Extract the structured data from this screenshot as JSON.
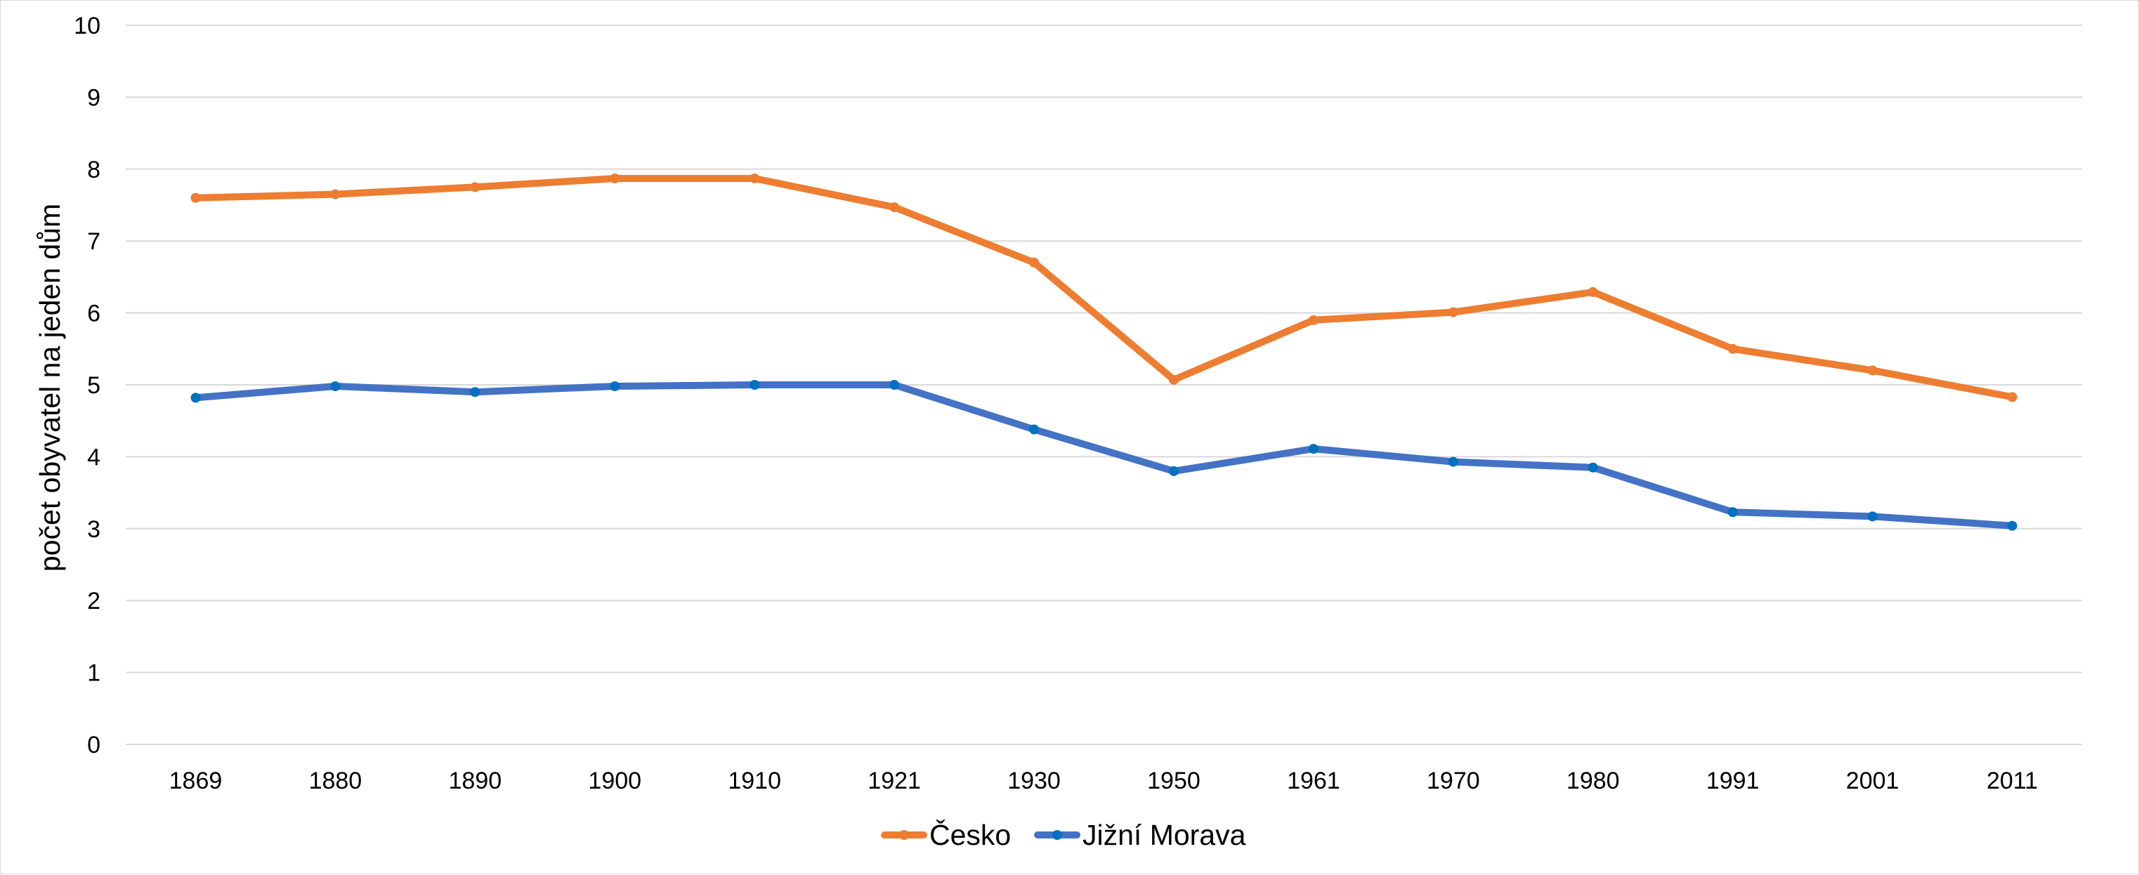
{
  "chart_data": {
    "type": "line",
    "title": "",
    "xlabel": "",
    "ylabel": "počet obyvatel na jeden dům",
    "categories": [
      "1869",
      "1880",
      "1890",
      "1900",
      "1910",
      "1921",
      "1930",
      "1950",
      "1961",
      "1970",
      "1980",
      "1991",
      "2001",
      "2011"
    ],
    "ylim": [
      0,
      10
    ],
    "yticks": [
      "0",
      "1",
      "2",
      "3",
      "4",
      "5",
      "6",
      "7",
      "8",
      "9",
      "10"
    ],
    "grid": true,
    "legend_position": "bottom",
    "series": [
      {
        "name": "Česko",
        "color": "#ED7D31",
        "values": [
          7.6,
          7.65,
          7.75,
          7.87,
          7.87,
          7.47,
          6.7,
          5.07,
          5.9,
          6.01,
          6.29,
          5.5,
          5.2,
          4.83
        ]
      },
      {
        "name": "Jižní Morava",
        "color": "#4472C4",
        "marker_color": "#0070C0",
        "values": [
          4.82,
          4.98,
          4.9,
          4.98,
          5.0,
          5.0,
          4.38,
          3.8,
          4.11,
          3.93,
          3.85,
          3.23,
          3.17,
          3.04
        ]
      }
    ]
  }
}
